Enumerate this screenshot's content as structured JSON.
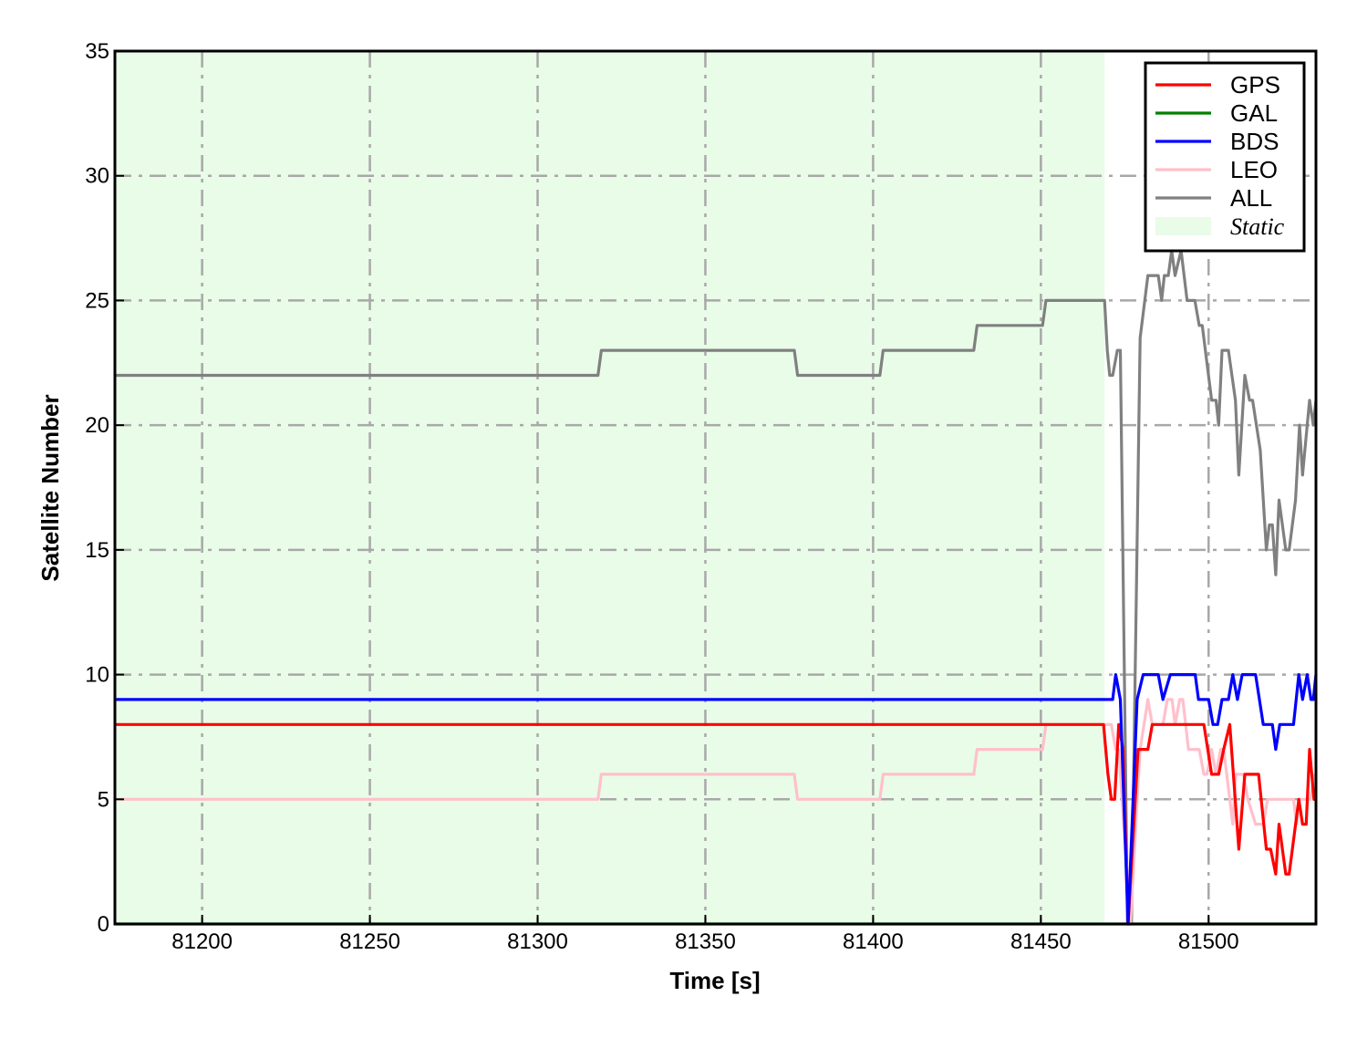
{
  "chart_data": {
    "type": "line",
    "title": "",
    "xlabel": "Time [s]",
    "ylabel": "Satellite Number",
    "xlim": [
      81174,
      81532
    ],
    "ylim": [
      0,
      35
    ],
    "xticks": [
      81200,
      81250,
      81300,
      81350,
      81400,
      81450,
      81500
    ],
    "yticks": [
      0,
      5,
      10,
      15,
      20,
      25,
      30,
      35
    ],
    "grid": true,
    "legend_position": "top-right",
    "shaded_region": {
      "name": "Static",
      "x": [
        81174,
        81469
      ],
      "color": "#e8fce8"
    },
    "series": [
      {
        "name": "GPS",
        "color": "#ff0000",
        "points": [
          [
            81174,
            8
          ],
          [
            81468.7,
            8
          ],
          [
            81470,
            6
          ],
          [
            81471,
            5
          ],
          [
            81472,
            5
          ],
          [
            81473.2,
            8
          ],
          [
            81474.5,
            7
          ],
          [
            81476,
            0
          ],
          [
            81479,
            7
          ],
          [
            81481.9,
            7
          ],
          [
            81483.2,
            8
          ],
          [
            81498.6,
            8
          ],
          [
            81500.9,
            6
          ],
          [
            81503,
            6
          ],
          [
            81504.5,
            7
          ],
          [
            81506.3,
            8
          ],
          [
            81509,
            3
          ],
          [
            81510.8,
            6
          ],
          [
            81514.9,
            6
          ],
          [
            81517.2,
            3
          ],
          [
            81518.5,
            3
          ],
          [
            81520,
            2
          ],
          [
            81521,
            4
          ],
          [
            81523,
            2
          ],
          [
            81524,
            2
          ],
          [
            81526.9,
            5
          ],
          [
            81528,
            4
          ],
          [
            81529.1,
            4
          ],
          [
            81530.1,
            7
          ],
          [
            81531.4,
            5
          ],
          [
            81532,
            5
          ]
        ]
      },
      {
        "name": "GAL",
        "color": "#008000",
        "points": [
          [
            81174,
            0
          ],
          [
            81532,
            0
          ]
        ]
      },
      {
        "name": "BDS",
        "color": "#0000ff",
        "points": [
          [
            81174,
            9
          ],
          [
            81471.4,
            9
          ],
          [
            81472.3,
            10
          ],
          [
            81473.7,
            9
          ],
          [
            81476,
            0
          ],
          [
            81478.7,
            9
          ],
          [
            81480.5,
            10
          ],
          [
            81485,
            10
          ],
          [
            81486.4,
            9
          ],
          [
            81488.6,
            10
          ],
          [
            81496,
            10
          ],
          [
            81497,
            9
          ],
          [
            81500,
            9
          ],
          [
            81501.3,
            8
          ],
          [
            81502.7,
            8
          ],
          [
            81504,
            9
          ],
          [
            81505.9,
            9
          ],
          [
            81507.2,
            10
          ],
          [
            81508.6,
            9
          ],
          [
            81510,
            10
          ],
          [
            81514,
            10
          ],
          [
            81516.3,
            8
          ],
          [
            81519,
            8
          ],
          [
            81520,
            7
          ],
          [
            81521.2,
            8
          ],
          [
            81525.3,
            8
          ],
          [
            81526.9,
            10
          ],
          [
            81528,
            9
          ],
          [
            81529.4,
            10
          ],
          [
            81530.5,
            9
          ],
          [
            81531.2,
            9
          ],
          [
            81532,
            10
          ]
        ]
      },
      {
        "name": "LEO",
        "color": "#ffc0cb",
        "points": [
          [
            81174,
            5
          ],
          [
            81318,
            5
          ],
          [
            81319,
            6
          ],
          [
            81376.5,
            6
          ],
          [
            81377.5,
            5
          ],
          [
            81402,
            5
          ],
          [
            81403,
            6
          ],
          [
            81430,
            6
          ],
          [
            81431,
            7
          ],
          [
            81450.5,
            7
          ],
          [
            81451.5,
            8
          ],
          [
            81471,
            8
          ],
          [
            81472.3,
            7
          ],
          [
            81473.2,
            7
          ],
          [
            81476.7,
            0
          ],
          [
            81478.7,
            5
          ],
          [
            81479.6,
            7
          ],
          [
            81481.9,
            9
          ],
          [
            81483.2,
            8
          ],
          [
            81486.4,
            8
          ],
          [
            81487.7,
            9
          ],
          [
            81489.1,
            9
          ],
          [
            81490,
            8
          ],
          [
            81491.4,
            9
          ],
          [
            81492.3,
            9
          ],
          [
            81494,
            7
          ],
          [
            81497.2,
            7
          ],
          [
            81498.6,
            6
          ],
          [
            81499.5,
            6
          ],
          [
            81500.9,
            7
          ],
          [
            81502.2,
            6
          ],
          [
            81503.6,
            7
          ],
          [
            81504.5,
            7
          ],
          [
            81507.2,
            4
          ],
          [
            81508.1,
            6
          ],
          [
            81510.4,
            6
          ],
          [
            81511.7,
            5
          ],
          [
            81514,
            4
          ],
          [
            81516.3,
            4
          ],
          [
            81517.6,
            5
          ],
          [
            81525.3,
            5
          ],
          [
            81526.2,
            4
          ],
          [
            81527.1,
            5
          ],
          [
            81530.3,
            5
          ],
          [
            81531.7,
            6
          ],
          [
            81532,
            5
          ]
        ]
      },
      {
        "name": "ALL",
        "color": "#808080",
        "points": [
          [
            81174,
            22
          ],
          [
            81318,
            22
          ],
          [
            81319,
            23
          ],
          [
            81376.5,
            23
          ],
          [
            81377.5,
            22
          ],
          [
            81402,
            22
          ],
          [
            81403,
            23
          ],
          [
            81430,
            23
          ],
          [
            81431,
            24
          ],
          [
            81450.5,
            24
          ],
          [
            81451.5,
            25
          ],
          [
            81469,
            25
          ],
          [
            81469.8,
            23
          ],
          [
            81470.5,
            22
          ],
          [
            81471.4,
            22
          ],
          [
            81472.8,
            23
          ],
          [
            81473.7,
            23
          ],
          [
            81475.8,
            0
          ],
          [
            81477,
            0
          ],
          [
            81479.6,
            23.5
          ],
          [
            81481.9,
            26
          ],
          [
            81485,
            26
          ],
          [
            81486,
            25
          ],
          [
            81486.8,
            26
          ],
          [
            81488,
            26
          ],
          [
            81489,
            27
          ],
          [
            81490,
            26
          ],
          [
            81491.8,
            27
          ],
          [
            81493.6,
            25
          ],
          [
            81495.9,
            25
          ],
          [
            81497.2,
            24
          ],
          [
            81498.1,
            24
          ],
          [
            81500.9,
            21
          ],
          [
            81502.2,
            21
          ],
          [
            81503,
            20
          ],
          [
            81504,
            23
          ],
          [
            81505.9,
            23
          ],
          [
            81508,
            21
          ],
          [
            81509,
            18
          ],
          [
            81510.8,
            22
          ],
          [
            81512.2,
            21
          ],
          [
            81513.1,
            21
          ],
          [
            81515.4,
            19
          ],
          [
            81517.2,
            15
          ],
          [
            81518.1,
            16
          ],
          [
            81519,
            16
          ],
          [
            81520,
            14
          ],
          [
            81521,
            17
          ],
          [
            81523,
            15
          ],
          [
            81524,
            15
          ],
          [
            81525.9,
            17
          ],
          [
            81527.1,
            20
          ],
          [
            81528,
            18
          ],
          [
            81529.4,
            20
          ],
          [
            81530.1,
            21
          ],
          [
            81531.2,
            20
          ],
          [
            81532,
            21
          ]
        ]
      }
    ]
  }
}
